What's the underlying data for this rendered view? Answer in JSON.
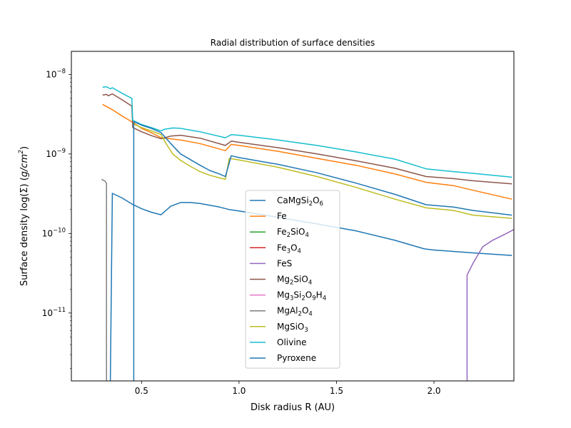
{
  "chart_data": {
    "type": "line",
    "title": "Radial distribution of surface densities",
    "xlabel": "Disk radius R (AU)",
    "ylabel": "Surface density log(Σ) (g/cm²)",
    "xlim": [
      0.14,
      2.41
    ],
    "ylim": [
      1.4e-12,
      1.95e-08
    ],
    "yscale": "log",
    "xticks": [
      0.5,
      1.0,
      1.5,
      2.0
    ],
    "xtick_labels": [
      "0.5",
      "1.0",
      "1.5",
      "2.0"
    ],
    "yticks_major": [
      1e-11,
      1e-10,
      1e-09,
      1e-08
    ],
    "ytick_labels": [
      {
        "base": "10",
        "exp": "−11"
      },
      {
        "base": "10",
        "exp": "−10"
      },
      {
        "base": "10",
        "exp": "−9"
      },
      {
        "base": "10",
        "exp": "−8"
      }
    ],
    "grid": false,
    "legend_position": "lower center",
    "series": [
      {
        "name": "CaMgSi₂O₆",
        "color": "#1f77b4",
        "x": [
          0.34,
          0.35,
          0.4,
          0.45,
          0.5,
          0.55,
          0.6,
          0.65,
          0.7,
          0.75,
          0.8,
          0.9,
          0.95,
          1.0,
          1.2,
          1.4,
          1.6,
          1.8,
          1.95,
          2.0,
          2.2,
          2.4
        ],
        "y": [
          1.4e-12,
          3.2e-10,
          2.8e-10,
          2.35e-10,
          2.05e-10,
          1.85e-10,
          1.72e-10,
          2.2e-10,
          2.45e-10,
          2.45e-10,
          2.38e-10,
          2.15e-10,
          2e-10,
          1.92e-10,
          1.6e-10,
          1.32e-10,
          1.08e-10,
          8.2e-11,
          6.4e-11,
          6.2e-11,
          5.7e-11,
          5.3e-11
        ]
      },
      {
        "name": "Fe",
        "color": "#ff7f0e",
        "x": [
          0.3,
          0.35,
          0.4,
          0.46,
          0.5,
          0.55,
          0.6,
          0.65,
          0.7,
          0.8,
          0.93,
          0.96,
          1.0,
          1.2,
          1.4,
          1.6,
          1.8,
          1.96,
          2.1,
          2.2,
          2.4
        ],
        "y": [
          4.2e-09,
          3.6e-09,
          3e-09,
          2.45e-09,
          2.1e-09,
          1.85e-09,
          1.6e-09,
          1.55e-09,
          1.5e-09,
          1.35e-09,
          1.1e-09,
          1.32e-09,
          1.28e-09,
          1.08e-09,
          8.8e-10,
          7.2e-10,
          5.6e-10,
          4.4e-10,
          4e-10,
          3.5e-10,
          2.7e-10
        ]
      },
      {
        "name": "Fe₂SiO₄",
        "color": "#2ca02c",
        "x": [],
        "y": []
      },
      {
        "name": "Fe₃O₄",
        "color": "#d62728",
        "x": [],
        "y": []
      },
      {
        "name": "FeS",
        "color": "#9467bd",
        "x": [
          2.17,
          2.17,
          2.2,
          2.25,
          2.3,
          2.35,
          2.41
        ],
        "y": [
          1.4e-12,
          3e-11,
          4.2e-11,
          6.8e-11,
          8.2e-11,
          9.4e-11,
          1.12e-10
        ]
      },
      {
        "name": "Mg₂SiO₄",
        "color": "#8c564b",
        "x": [
          0.3,
          0.32,
          0.33,
          0.35,
          0.4,
          0.45,
          0.455,
          0.5,
          0.55,
          0.6,
          0.65,
          0.7,
          0.8,
          0.93,
          0.96,
          1.0,
          1.2,
          1.4,
          1.6,
          1.8,
          1.96,
          2.1,
          2.2,
          2.4
        ],
        "y": [
          5.5e-09,
          5.6e-09,
          5.4e-09,
          5.7e-09,
          4.8e-09,
          4e-09,
          2.15e-09,
          1.9e-09,
          1.7e-09,
          1.55e-09,
          1.68e-09,
          1.72e-09,
          1.58e-09,
          1.28e-09,
          1.45e-09,
          1.4e-09,
          1.2e-09,
          1e-09,
          8.2e-10,
          6.6e-10,
          5.2e-10,
          4.9e-10,
          4.6e-10,
          4.2e-10
        ]
      },
      {
        "name": "Mg₃Si₂O₉H₄",
        "color": "#e377c2",
        "x": [],
        "y": []
      },
      {
        "name": "MgAl₂O₄",
        "color": "#7f7f7f",
        "x": [
          0.295,
          0.31,
          0.32,
          0.32
        ],
        "y": [
          4.8e-10,
          4.6e-10,
          4.3e-10,
          1.4e-12
        ]
      },
      {
        "name": "MgSiO₃",
        "color": "#bcbd22",
        "x": [
          0.455,
          0.5,
          0.55,
          0.6,
          0.63,
          0.66,
          0.7,
          0.75,
          0.8,
          0.85,
          0.9,
          0.93,
          0.95,
          1.0,
          1.2,
          1.4,
          1.6,
          1.8,
          1.96,
          2.1,
          2.2,
          2.4
        ],
        "y": [
          2.4e-09,
          2.15e-09,
          1.95e-09,
          1.75e-09,
          1.3e-09,
          1e-09,
          8.3e-10,
          7e-10,
          6e-10,
          5.4e-10,
          5e-10,
          4.8e-10,
          8.8e-10,
          8.4e-10,
          6.8e-10,
          5.2e-10,
          3.8e-10,
          2.7e-10,
          2.1e-10,
          1.95e-10,
          1.7e-10,
          1.55e-10
        ]
      },
      {
        "name": "Olivine",
        "color": "#17becf",
        "x": [
          0.3,
          0.32,
          0.33,
          0.34,
          0.35,
          0.4,
          0.45,
          0.455,
          0.5,
          0.55,
          0.6,
          0.62,
          0.66,
          0.7,
          0.8,
          0.93,
          0.96,
          1.0,
          1.2,
          1.4,
          1.6,
          1.8,
          1.96,
          2.1,
          2.2,
          2.4
        ],
        "y": [
          6.9e-09,
          7e-09,
          6.8e-09,
          6.6e-09,
          6.8e-09,
          5.8e-09,
          5e-09,
          2.65e-09,
          2.35e-09,
          2.15e-09,
          1.95e-09,
          2.05e-09,
          2.12e-09,
          2.1e-09,
          1.9e-09,
          1.6e-09,
          1.75e-09,
          1.72e-09,
          1.5e-09,
          1.28e-09,
          1.06e-09,
          8.6e-10,
          6.5e-10,
          6e-10,
          5.7e-10,
          5.1e-10
        ]
      },
      {
        "name": "Pyroxene",
        "color": "#1f77b4",
        "x": [
          0.46,
          0.46,
          0.5,
          0.55,
          0.6,
          0.65,
          0.7,
          0.75,
          0.8,
          0.85,
          0.9,
          0.93,
          0.96,
          1.0,
          1.2,
          1.4,
          1.6,
          1.8,
          1.96,
          2.1,
          2.2,
          2.4
        ],
        "y": [
          1.4e-12,
          2.55e-09,
          2.3e-09,
          2.1e-09,
          1.85e-09,
          1.35e-09,
          1e-09,
          8.5e-10,
          7.2e-10,
          6.2e-10,
          5.6e-10,
          5.2e-10,
          9.5e-10,
          9e-10,
          7.4e-10,
          5.8e-10,
          4.3e-10,
          3.1e-10,
          2.3e-10,
          2.15e-10,
          1.95e-10,
          1.7e-10
        ]
      }
    ]
  }
}
